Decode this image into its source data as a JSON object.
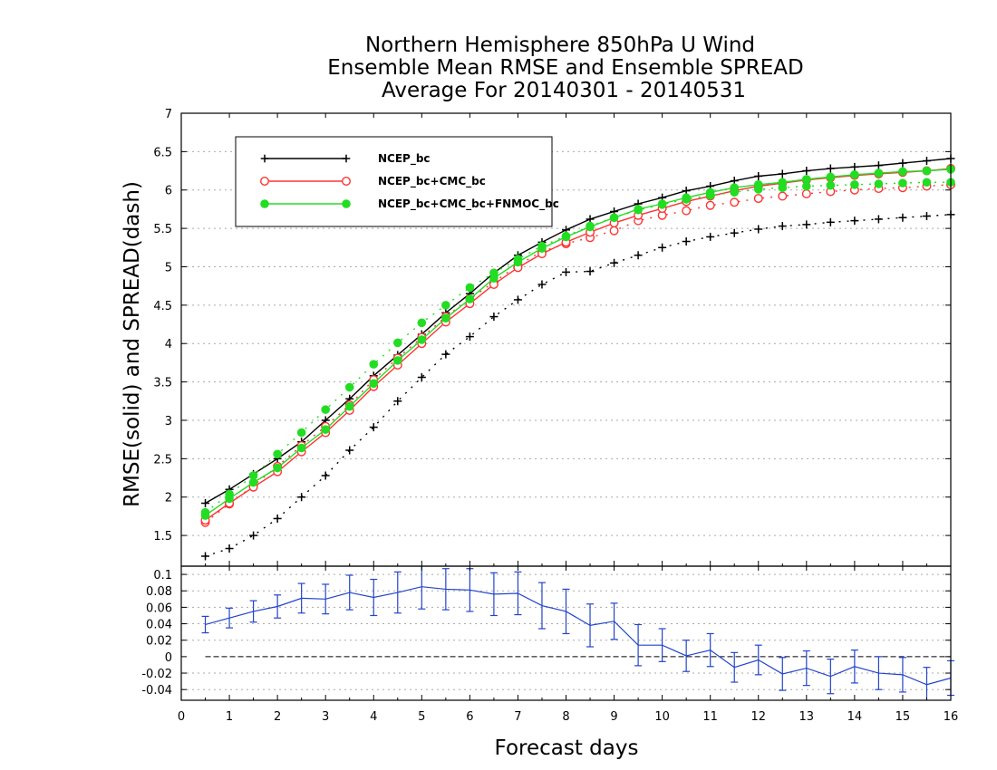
{
  "chart_data": [
    {
      "type": "line",
      "title": [
        "Northern Hemisphere 850hPa U Wind",
        "Ensemble Mean RMSE and Ensemble SPREAD",
        "Average For 20140301 - 20140531"
      ],
      "ylabel": "RMSE(solid) and SPREAD(dash)",
      "xlim": [
        0,
        16
      ],
      "ylim": [
        1.1,
        7
      ],
      "yticks": [
        "1.5",
        "2",
        "2.5",
        "3",
        "3.5",
        "4",
        "4.5",
        "5",
        "5.5",
        "6",
        "6.5",
        "7"
      ],
      "grid": true,
      "legend": {
        "placement": "top-left"
      },
      "x": [
        0.5,
        1,
        1.5,
        2,
        2.5,
        3,
        3.5,
        4,
        4.5,
        5,
        5.5,
        6,
        6.5,
        7,
        7.5,
        8,
        8.5,
        9,
        9.5,
        10,
        10.5,
        11,
        11.5,
        12,
        12.5,
        13,
        13.5,
        14,
        14.5,
        15,
        15.5,
        16
      ],
      "series": [
        {
          "name": "NCEP_bc",
          "color": "#000000",
          "marker": "plus",
          "rmse": [
            1.92,
            2.1,
            2.3,
            2.5,
            2.72,
            3.0,
            3.28,
            3.58,
            3.85,
            4.12,
            4.4,
            4.65,
            4.92,
            5.15,
            5.32,
            5.48,
            5.62,
            5.72,
            5.82,
            5.9,
            5.99,
            6.05,
            6.12,
            6.18,
            6.21,
            6.25,
            6.28,
            6.3,
            6.32,
            6.35,
            6.38,
            6.41
          ],
          "spread": [
            1.23,
            1.33,
            1.5,
            1.72,
            2.0,
            2.28,
            2.61,
            2.91,
            3.25,
            3.56,
            3.86,
            4.09,
            4.35,
            4.57,
            4.77,
            4.93,
            4.94,
            5.05,
            5.15,
            5.25,
            5.33,
            5.39,
            5.44,
            5.49,
            5.53,
            5.55,
            5.58,
            5.6,
            5.62,
            5.64,
            5.66,
            5.68
          ]
        },
        {
          "name": "NCEP_bc+CMC_bc",
          "color": "#ff3333",
          "marker": "open-circle",
          "rmse": [
            1.7,
            1.92,
            2.13,
            2.33,
            2.59,
            2.84,
            3.13,
            3.44,
            3.72,
            4.0,
            4.28,
            4.52,
            4.77,
            4.99,
            5.17,
            5.32,
            5.45,
            5.57,
            5.67,
            5.76,
            5.85,
            5.92,
            5.99,
            6.05,
            6.09,
            6.13,
            6.16,
            6.19,
            6.21,
            6.23,
            6.25,
            6.28
          ],
          "spread": [
            1.67,
            1.91,
            2.15,
            2.4,
            2.67,
            2.92,
            3.2,
            3.53,
            3.81,
            4.08,
            4.35,
            4.58,
            4.8,
            5.02,
            5.2,
            5.3,
            5.38,
            5.47,
            5.6,
            5.67,
            5.73,
            5.8,
            5.84,
            5.89,
            5.92,
            5.95,
            5.98,
            6.0,
            6.02,
            6.03,
            6.05,
            6.07
          ]
        },
        {
          "name": "NCEP_bc+CMC_bc+FNMOC_bc",
          "color": "#22dd22",
          "marker": "filled-circle",
          "rmse": [
            1.76,
            1.98,
            2.19,
            2.38,
            2.64,
            2.88,
            3.18,
            3.48,
            3.78,
            4.05,
            4.33,
            4.58,
            4.85,
            5.06,
            5.24,
            5.39,
            5.52,
            5.64,
            5.75,
            5.82,
            5.9,
            5.97,
            6.03,
            6.07,
            6.1,
            6.14,
            6.17,
            6.2,
            6.22,
            6.24,
            6.25,
            6.27
          ],
          "spread": [
            1.8,
            2.04,
            2.28,
            2.56,
            2.84,
            3.14,
            3.43,
            3.73,
            4.01,
            4.27,
            4.5,
            4.73,
            4.92,
            5.1,
            5.27,
            5.4,
            5.53,
            5.64,
            5.74,
            5.81,
            5.88,
            5.93,
            5.97,
            6.01,
            6.03,
            6.05,
            6.06,
            6.07,
            6.08,
            6.09,
            6.1,
            6.1
          ]
        }
      ]
    },
    {
      "type": "line",
      "xlabel": "Forecast days",
      "xlim": [
        0,
        16
      ],
      "ylim": [
        -0.053,
        0.11
      ],
      "xticks": [
        "0",
        "1",
        "2",
        "3",
        "4",
        "5",
        "6",
        "7",
        "8",
        "9",
        "10",
        "11",
        "12",
        "13",
        "14",
        "15",
        "16"
      ],
      "yticks": [
        "-0.04",
        "-0.02",
        "0",
        "0.02",
        "0.04",
        "0.06",
        "0.08",
        "0.1"
      ],
      "x": [
        0.5,
        1,
        1.5,
        2,
        2.5,
        3,
        3.5,
        4,
        4.5,
        5,
        5.5,
        6,
        6.5,
        7,
        7.5,
        8,
        8.5,
        9,
        9.5,
        10,
        10.5,
        11,
        11.5,
        12,
        12.5,
        13,
        13.5,
        14,
        14.5,
        15,
        15.5,
        16
      ],
      "series": [
        {
          "color": "#2244cc",
          "error_bars": true,
          "values": [
            0.039,
            0.047,
            0.055,
            0.061,
            0.071,
            0.07,
            0.078,
            0.072,
            0.078,
            0.085,
            0.082,
            0.081,
            0.076,
            0.077,
            0.062,
            0.055,
            0.038,
            0.043,
            0.014,
            0.014,
            0.001,
            0.008,
            -0.013,
            -0.004,
            -0.021,
            -0.014,
            -0.024,
            -0.012,
            -0.02,
            -0.022,
            -0.034,
            -0.026
          ],
          "errors": [
            0.01,
            0.012,
            0.013,
            0.014,
            0.018,
            0.018,
            0.021,
            0.022,
            0.025,
            0.027,
            0.025,
            0.026,
            0.026,
            0.026,
            0.028,
            0.027,
            0.026,
            0.022,
            0.025,
            0.02,
            0.019,
            0.02,
            0.018,
            0.018,
            0.02,
            0.021,
            0.021,
            0.02,
            0.02,
            0.021,
            0.021,
            0.021
          ]
        }
      ]
    }
  ]
}
